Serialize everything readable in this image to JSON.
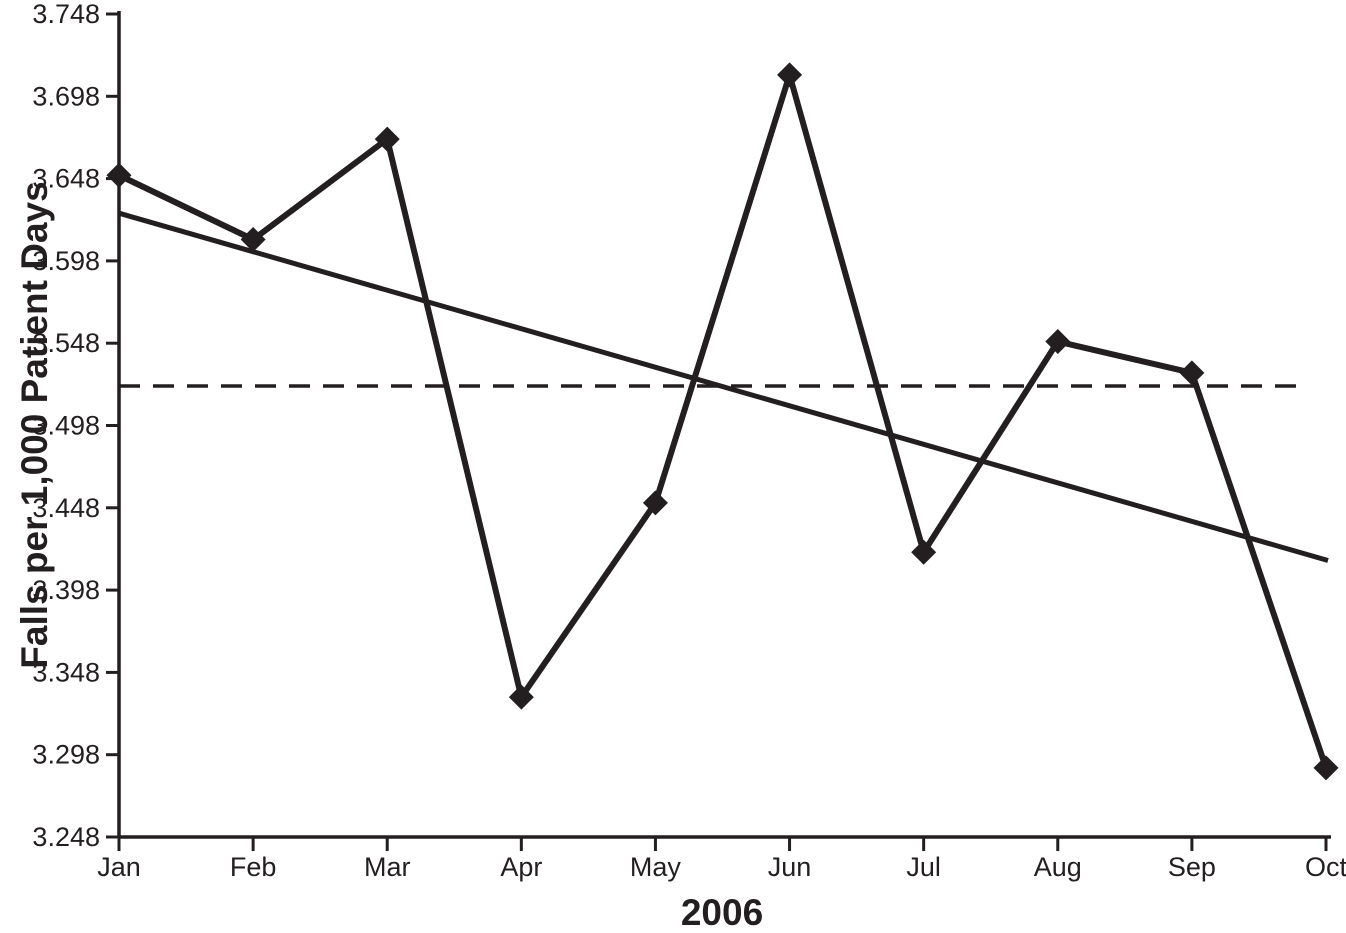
{
  "chart_data": {
    "type": "line",
    "title": "",
    "xlabel": "2006",
    "ylabel": "Falls per 1,000 Patient Days",
    "categories": [
      "Jan",
      "Feb",
      "Mar",
      "Apr",
      "May",
      "Jun",
      "Jul",
      "Aug",
      "Sep",
      "Oct"
    ],
    "series": [
      {
        "name": "falls-per-1000-patient-days",
        "style": "solid-line-diamond-markers",
        "values": [
          3.65,
          3.611,
          3.672,
          3.333,
          3.451,
          3.711,
          3.421,
          3.549,
          3.53,
          3.29
        ]
      },
      {
        "name": "trend-line",
        "style": "straight-solid-line",
        "start_value": 3.627,
        "end_value": 3.416
      },
      {
        "name": "mean-line",
        "style": "dashed-horizontal-line",
        "value": 3.522
      }
    ],
    "ylim": [
      3.248,
      3.748
    ],
    "yticks": [
      3.248,
      3.298,
      3.348,
      3.398,
      3.448,
      3.498,
      3.548,
      3.598,
      3.648,
      3.698,
      3.748
    ],
    "ytick_format": "3-decimals",
    "grid": false,
    "legend": "none",
    "colors": {
      "line": "#231f20",
      "background": "#ffffff"
    }
  }
}
